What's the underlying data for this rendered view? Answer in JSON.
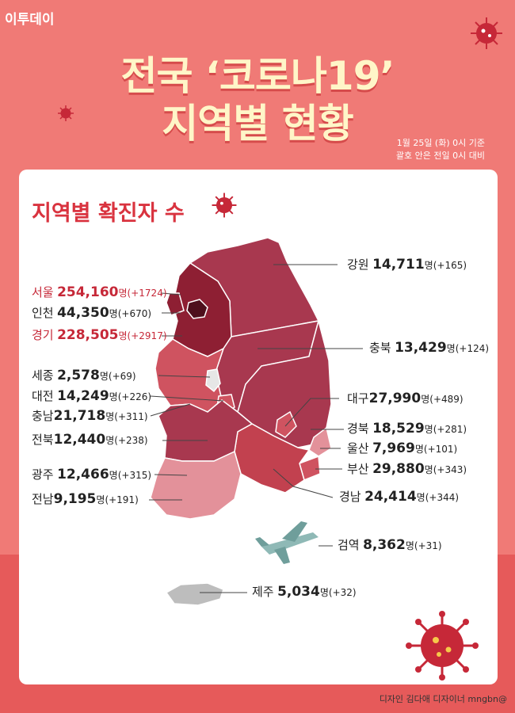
{
  "header": {
    "logo": "이투데이",
    "title_line1": "전국 ‘코로나19’",
    "title_line2": "지역별 현황",
    "note_line1": "1월 25일 (화) 0시 기준",
    "note_line2": "괄호 안은 전일 0시 대비"
  },
  "section": {
    "subtitle": "지역별 확진자 수"
  },
  "unit": "명",
  "regions": [
    {
      "name": "강원",
      "value": "14,711",
      "change": "(+165)"
    },
    {
      "name": "서울",
      "value": "254,160",
      "change": "(+1724)"
    },
    {
      "name": "인천",
      "value": "44,350",
      "change": "(+670)"
    },
    {
      "name": "경기",
      "value": "228,505",
      "change": "(+2917)"
    },
    {
      "name": "충북",
      "value": "13,429",
      "change": "(+124)"
    },
    {
      "name": "세종",
      "value": "2,578",
      "change": "(+69)"
    },
    {
      "name": "대전",
      "value": "14,249",
      "change": "(+226)"
    },
    {
      "name": "대구",
      "value": "27,990",
      "change": "(+489)"
    },
    {
      "name": "충남",
      "value": "21,718",
      "change": "(+311)"
    },
    {
      "name": "경북",
      "value": "18,529",
      "change": "(+281)"
    },
    {
      "name": "전북",
      "value": "12,440",
      "change": "(+238)"
    },
    {
      "name": "울산",
      "value": "7,969",
      "change": "(+101)"
    },
    {
      "name": "광주",
      "value": "12,466",
      "change": "(+315)"
    },
    {
      "name": "부산",
      "value": "29,880",
      "change": "(+343)"
    },
    {
      "name": "전남",
      "value": "9,195",
      "change": "(+191)"
    },
    {
      "name": "경남",
      "value": "24,414",
      "change": "(+344)"
    },
    {
      "name": "검역",
      "value": "8,362",
      "change": "(+31)"
    },
    {
      "name": "제주",
      "value": "5,034",
      "change": "(+32)"
    }
  ],
  "footer": {
    "credit": "디자인 김다애 디자이너 mngbn@"
  },
  "colors": {
    "background": "#f07a76",
    "title": "#fff6c8",
    "accent": "#c62838",
    "map_dark": "#8e1f33",
    "map_mid": "#a8384f",
    "map_light": "#e3919a"
  },
  "icons": [
    "virus-icon",
    "airplane-icon"
  ]
}
